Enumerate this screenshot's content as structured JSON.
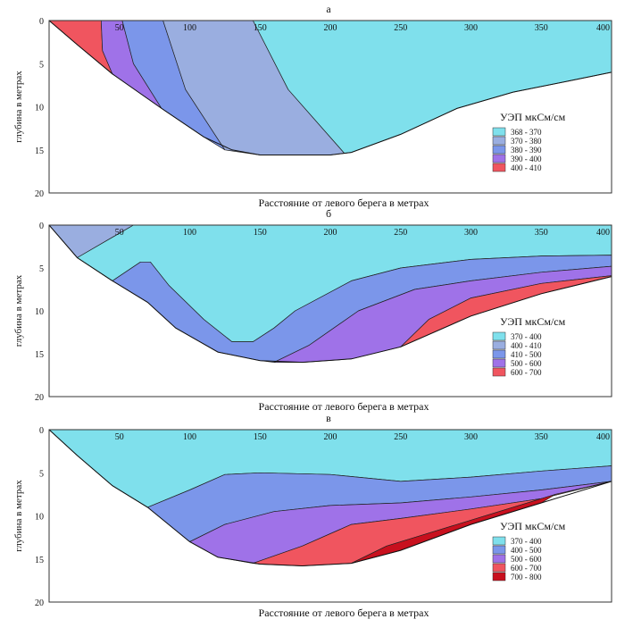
{
  "chart_data": [
    {
      "type": "area",
      "title": "а",
      "xlabel": "Расстояние от левого берега в метрах",
      "ylabel": "глубина в метрах",
      "xlim": [
        0,
        400
      ],
      "ylim": [
        0,
        20
      ],
      "xticks": [
        "50",
        "100",
        "150",
        "200",
        "250",
        "300",
        "350",
        "400"
      ],
      "yticks": [
        "0",
        "5",
        "10",
        "15",
        "20"
      ],
      "legend_title": "УЭП мкСм/см",
      "legend": [
        {
          "label": "368 - 370",
          "color": "#7fe0ec"
        },
        {
          "label": "370 - 380",
          "color": "#9aaee0"
        },
        {
          "label": "380 - 390",
          "color": "#7b96ea"
        },
        {
          "label": "390 - 400",
          "color": "#9f72e8"
        },
        {
          "label": "400 - 410",
          "color": "#f0555f"
        }
      ],
      "bottom": [
        [
          0,
          0
        ],
        [
          20,
          2.8
        ],
        [
          45,
          6.2
        ],
        [
          80,
          10.2
        ],
        [
          110,
          13.5
        ],
        [
          130,
          15
        ],
        [
          150,
          15.6
        ],
        [
          200,
          15.6
        ],
        [
          215,
          15.3
        ],
        [
          250,
          13.2
        ],
        [
          290,
          10.2
        ],
        [
          330,
          8.3
        ],
        [
          370,
          7
        ],
        [
          400,
          6
        ],
        [
          400,
          0
        ]
      ],
      "zones": [
        {
          "color": "#f0555f",
          "points": [
            [
              0,
              0
            ],
            [
              20,
              2.8
            ],
            [
              45,
              6.2
            ],
            [
              38,
              3.5
            ],
            [
              37,
              0
            ]
          ]
        },
        {
          "color": "#9f72e8",
          "points": [
            [
              37,
              0
            ],
            [
              38,
              3.5
            ],
            [
              45,
              6.2
            ],
            [
              80,
              10.2
            ],
            [
              60,
              5
            ],
            [
              52,
              0
            ]
          ]
        },
        {
          "color": "#7b96ea",
          "points": [
            [
              52,
              0
            ],
            [
              60,
              5
            ],
            [
              80,
              10.2
            ],
            [
              110,
              13.5
            ],
            [
              125,
              15
            ],
            [
              97,
              8
            ],
            [
              81,
              0
            ]
          ]
        },
        {
          "color": "#9aaee0",
          "points": [
            [
              81,
              0
            ],
            [
              97,
              8
            ],
            [
              125,
              15
            ],
            [
              150,
              15.6
            ],
            [
              200,
              15.6
            ],
            [
              210,
              15.4
            ],
            [
              170,
              8
            ],
            [
              145,
              0
            ]
          ]
        },
        {
          "color": "#7fe0ec",
          "points": [
            [
              145,
              0
            ],
            [
              170,
              8
            ],
            [
              210,
              15.4
            ],
            [
              215,
              15.3
            ],
            [
              250,
              13.2
            ],
            [
              290,
              10.2
            ],
            [
              330,
              8.3
            ],
            [
              370,
              7
            ],
            [
              400,
              6
            ],
            [
              400,
              0
            ]
          ]
        }
      ]
    },
    {
      "type": "area",
      "title": "б",
      "xlabel": "Расстояние от левого берега в метрах",
      "ylabel": "глубина в метрах",
      "xlim": [
        0,
        400
      ],
      "ylim": [
        0,
        20
      ],
      "xticks": [
        "50",
        "100",
        "150",
        "200",
        "250",
        "300",
        "350",
        "400"
      ],
      "yticks": [
        "0",
        "5",
        "10",
        "15",
        "20"
      ],
      "legend_title": "УЭП мкСм/см",
      "legend": [
        {
          "label": "370 - 400",
          "color": "#7fe0ec"
        },
        {
          "label": "400 - 410",
          "color": "#9aaee0"
        },
        {
          "label": "410 - 500",
          "color": "#7b96ea"
        },
        {
          "label": "500 - 600",
          "color": "#9f72e8"
        },
        {
          "label": "600 - 700",
          "color": "#f0555f"
        }
      ],
      "bottom": [
        [
          0,
          0
        ],
        [
          20,
          3.8
        ],
        [
          45,
          6.5
        ],
        [
          70,
          9
        ],
        [
          90,
          12
        ],
        [
          120,
          14.8
        ],
        [
          150,
          15.8
        ],
        [
          180,
          16
        ],
        [
          215,
          15.6
        ],
        [
          250,
          14.2
        ],
        [
          300,
          10.6
        ],
        [
          350,
          8
        ],
        [
          400,
          6
        ],
        [
          400,
          0
        ]
      ],
      "zones": [
        {
          "color": "#9aaee0",
          "points": [
            [
              0,
              0
            ],
            [
              20,
              3.8
            ],
            [
              60,
              0
            ]
          ]
        },
        {
          "color": "#7fe0ec",
          "points": [
            [
              60,
              0
            ],
            [
              20,
              3.8
            ],
            [
              45,
              6.5
            ],
            [
              65,
              4.3
            ],
            [
              72,
              4.3
            ],
            [
              85,
              7
            ],
            [
              110,
              11
            ],
            [
              130,
              13.6
            ],
            [
              145,
              13.6
            ],
            [
              160,
              12
            ],
            [
              175,
              10
            ],
            [
              215,
              6.5
            ],
            [
              250,
              5
            ],
            [
              300,
              4
            ],
            [
              350,
              3.6
            ],
            [
              400,
              3.5
            ],
            [
              400,
              0
            ]
          ]
        },
        {
          "color": "#7b96ea",
          "points": [
            [
              20,
              3.8
            ],
            [
              45,
              6.5
            ],
            [
              70,
              9
            ],
            [
              90,
              12
            ],
            [
              120,
              14.8
            ],
            [
              150,
              15.8
            ],
            [
              160,
              16
            ],
            [
              185,
              14
            ],
            [
              220,
              10
            ],
            [
              260,
              7.5
            ],
            [
              300,
              6.5
            ],
            [
              350,
              5.5
            ],
            [
              400,
              4.8
            ],
            [
              400,
              3.5
            ],
            [
              350,
              3.6
            ],
            [
              300,
              4
            ],
            [
              250,
              5
            ],
            [
              215,
              6.5
            ],
            [
              175,
              10
            ],
            [
              160,
              12
            ],
            [
              145,
              13.6
            ],
            [
              130,
              13.6
            ],
            [
              110,
              11
            ],
            [
              85,
              7
            ],
            [
              72,
              4.3
            ],
            [
              65,
              4.3
            ],
            [
              45,
              6.5
            ]
          ]
        },
        {
          "color": "#9f72e8",
          "points": [
            [
              160,
              16
            ],
            [
              180,
              16
            ],
            [
              215,
              15.6
            ],
            [
              250,
              14.2
            ],
            [
              270,
              11
            ],
            [
              300,
              8.5
            ],
            [
              350,
              6.8
            ],
            [
              400,
              5.9
            ],
            [
              400,
              4.8
            ],
            [
              350,
              5.5
            ],
            [
              300,
              6.5
            ],
            [
              260,
              7.5
            ],
            [
              220,
              10
            ],
            [
              185,
              14
            ]
          ]
        },
        {
          "color": "#f0555f",
          "points": [
            [
              250,
              14.2
            ],
            [
              300,
              10.6
            ],
            [
              350,
              8
            ],
            [
              400,
              6
            ],
            [
              400,
              5.9
            ],
            [
              350,
              6.8
            ],
            [
              300,
              8.5
            ],
            [
              270,
              11
            ]
          ]
        }
      ]
    },
    {
      "type": "area",
      "title": "в",
      "xlabel": "Расстояние от левого берега в метрах",
      "ylabel": "глубина в метрах",
      "xlim": [
        0,
        400
      ],
      "ylim": [
        0,
        20
      ],
      "xticks": [
        "50",
        "100",
        "150",
        "200",
        "250",
        "300",
        "350",
        "400"
      ],
      "yticks": [
        "0",
        "5",
        "10",
        "15",
        "20"
      ],
      "legend_title": "УЭП мкСм/см",
      "legend": [
        {
          "label": "370 - 400",
          "color": "#7fe0ec"
        },
        {
          "label": "400 - 500",
          "color": "#7b96ea"
        },
        {
          "label": "500 - 600",
          "color": "#9f72e8"
        },
        {
          "label": "600 - 700",
          "color": "#f0555f"
        },
        {
          "label": "700 - 800",
          "color": "#c8101e"
        }
      ],
      "bottom": [
        [
          0,
          0
        ],
        [
          20,
          3
        ],
        [
          45,
          6.5
        ],
        [
          70,
          9
        ],
        [
          100,
          13
        ],
        [
          120,
          14.8
        ],
        [
          150,
          15.6
        ],
        [
          180,
          15.8
        ],
        [
          215,
          15.5
        ],
        [
          250,
          14
        ],
        [
          300,
          11
        ],
        [
          350,
          8.5
        ],
        [
          400,
          6
        ],
        [
          400,
          0
        ]
      ],
      "zones": [
        {
          "color": "#7fe0ec",
          "points": [
            [
              0,
              0
            ],
            [
              20,
              3
            ],
            [
              45,
              6.5
            ],
            [
              70,
              9
            ],
            [
              100,
              7
            ],
            [
              125,
              5.2
            ],
            [
              150,
              5
            ],
            [
              200,
              5.2
            ],
            [
              250,
              6
            ],
            [
              300,
              5.5
            ],
            [
              350,
              4.8
            ],
            [
              400,
              4.2
            ],
            [
              400,
              0
            ]
          ]
        },
        {
          "color": "#7b96ea",
          "points": [
            [
              70,
              9
            ],
            [
              100,
              13
            ],
            [
              125,
              11
            ],
            [
              160,
              9.5
            ],
            [
              200,
              8.8
            ],
            [
              250,
              8.5
            ],
            [
              300,
              7.8
            ],
            [
              350,
              7
            ],
            [
              400,
              6
            ],
            [
              400,
              4.2
            ],
            [
              350,
              4.8
            ],
            [
              300,
              5.5
            ],
            [
              250,
              6
            ],
            [
              200,
              5.2
            ],
            [
              150,
              5
            ],
            [
              125,
              5.2
            ],
            [
              100,
              7
            ]
          ]
        },
        {
          "color": "#9f72e8",
          "points": [
            [
              100,
              13
            ],
            [
              120,
              14.8
            ],
            [
              145,
              15.5
            ],
            [
              180,
              13.5
            ],
            [
              215,
              11
            ],
            [
              250,
              10.3
            ],
            [
              300,
              9.2
            ],
            [
              350,
              8
            ],
            [
              400,
              6
            ],
            [
              350,
              7
            ],
            [
              300,
              7.8
            ],
            [
              250,
              8.5
            ],
            [
              200,
              8.8
            ],
            [
              160,
              9.5
            ],
            [
              125,
              11
            ]
          ]
        },
        {
          "color": "#f0555f",
          "points": [
            [
              145,
              15.5
            ],
            [
              150,
              15.6
            ],
            [
              180,
              15.8
            ],
            [
              215,
              15.5
            ],
            [
              240,
              13.5
            ],
            [
              270,
              12
            ],
            [
              320,
              9.5
            ],
            [
              360,
              7.5
            ],
            [
              400,
              6
            ],
            [
              350,
              8
            ],
            [
              300,
              9.2
            ],
            [
              250,
              10.3
            ],
            [
              215,
              11
            ],
            [
              180,
              13.5
            ]
          ]
        },
        {
          "color": "#c8101e",
          "points": [
            [
              215,
              15.5
            ],
            [
              250,
              14
            ],
            [
              300,
              11
            ],
            [
              350,
              8.5
            ],
            [
              360,
              7.5
            ],
            [
              320,
              9.5
            ],
            [
              270,
              12
            ],
            [
              240,
              13.5
            ]
          ]
        }
      ]
    }
  ]
}
